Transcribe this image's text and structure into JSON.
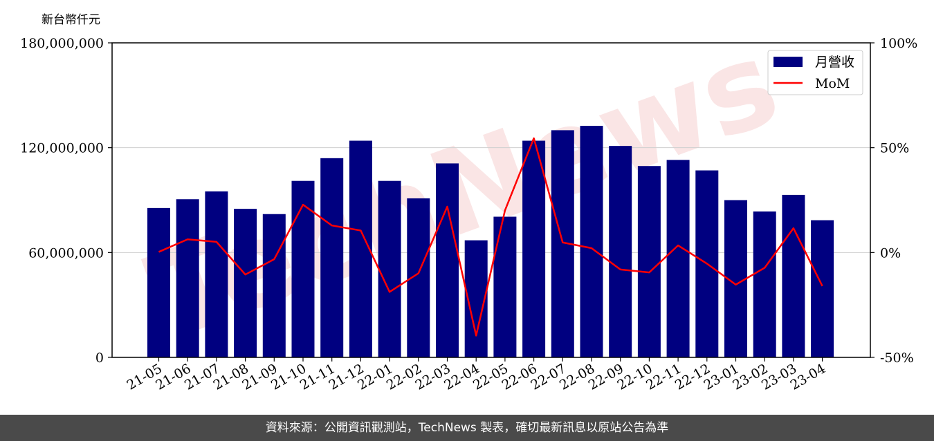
{
  "unit_label": "新台幣仟元",
  "footer": "資料來源：公開資訊觀測站，TechNews 製表，確切最新訊息以原站公告為準",
  "watermark": "TechNews",
  "chart_data": {
    "type": "bar",
    "categories": [
      "21-05",
      "21-06",
      "21-07",
      "21-08",
      "21-09",
      "21-10",
      "21-11",
      "21-12",
      "22-01",
      "22-02",
      "22-03",
      "22-04",
      "22-05",
      "22-06",
      "22-07",
      "22-08",
      "22-09",
      "22-10",
      "22-11",
      "22-12",
      "23-01",
      "23-02",
      "23-03",
      "23-04"
    ],
    "series": [
      {
        "name": "月營收",
        "type": "bar",
        "axis": "left",
        "color": "#000080",
        "values": [
          85500000,
          90500000,
          95000000,
          85000000,
          82000000,
          101000000,
          114000000,
          124000000,
          101000000,
          91000000,
          111000000,
          67000000,
          80500000,
          124000000,
          130000000,
          132500000,
          121000000,
          109500000,
          113000000,
          107000000,
          90000000,
          83500000,
          93000000,
          78500000
        ]
      },
      {
        "name": "MoM",
        "type": "line",
        "axis": "right",
        "color": "#ff0000",
        "values": [
          0.3,
          6.3,
          5.1,
          -10.5,
          -3.2,
          22.8,
          12.9,
          10.5,
          -18.8,
          -9.9,
          21.9,
          -39.6,
          20.1,
          54.5,
          4.8,
          2.1,
          -8.1,
          -9.5,
          3.4,
          -5.3,
          -15.3,
          -7.3,
          11.6,
          -16.0
        ]
      }
    ],
    "y_left": {
      "lim": [
        0,
        180000000
      ],
      "ticks": [
        0,
        60000000,
        120000000,
        180000000
      ],
      "tick_labels": [
        "0",
        "60,000,000",
        "120,000,000",
        "180,000,000"
      ]
    },
    "y_right": {
      "lim": [
        -50,
        100
      ],
      "ticks": [
        -50,
        0,
        50,
        100
      ],
      "tick_labels": [
        "-50%",
        "0%",
        "50%",
        "100%"
      ]
    },
    "grid": "horizontal",
    "legend": "top-right"
  }
}
